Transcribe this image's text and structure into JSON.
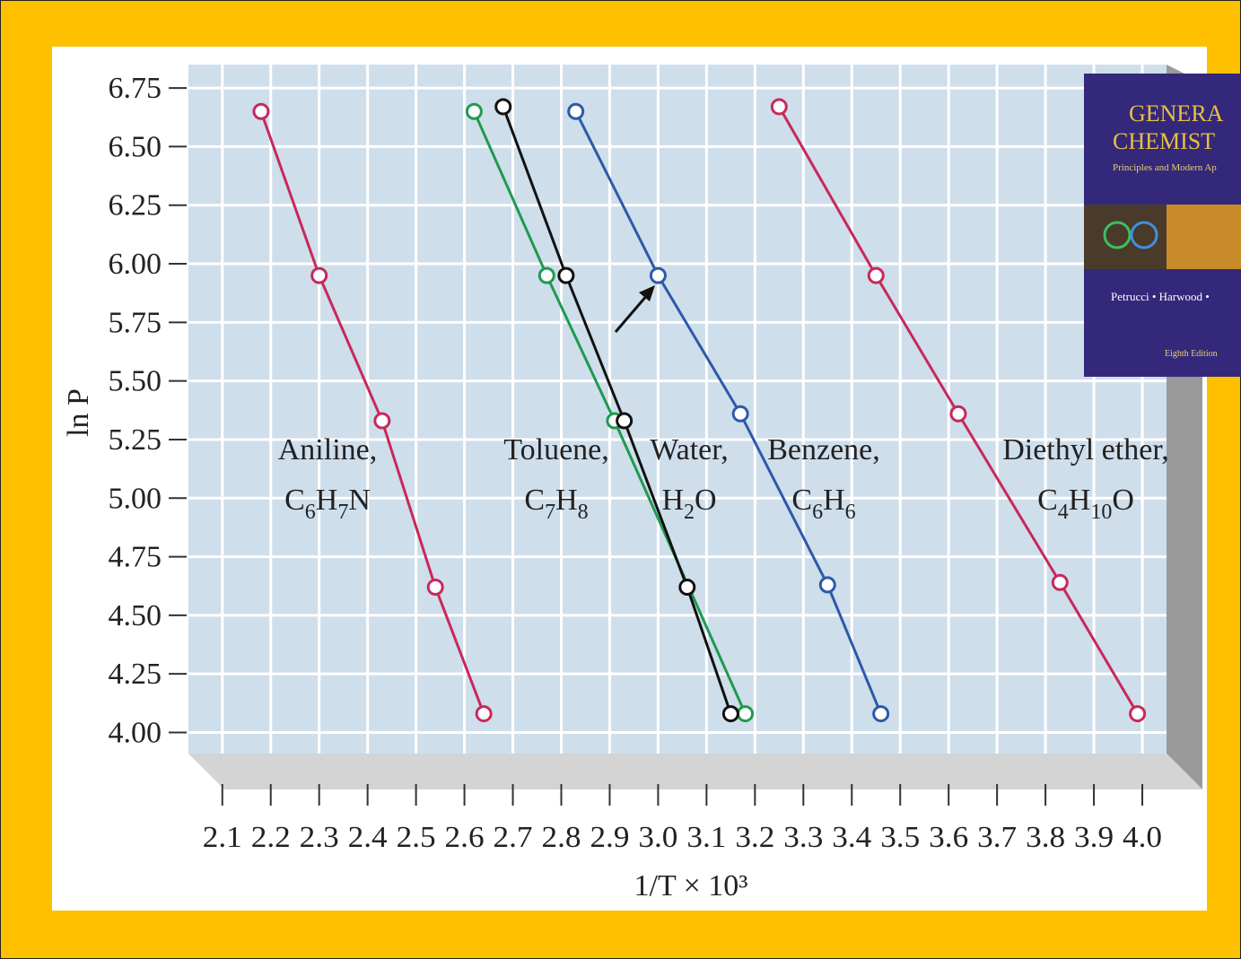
{
  "chart_data": {
    "type": "line",
    "y_label": "ln P",
    "x_label": "1/T × 10³",
    "xlim": [
      2.03,
      4.05
    ],
    "ylim": [
      3.91,
      6.85
    ],
    "xticks": [
      2.1,
      2.2,
      2.3,
      2.4,
      2.5,
      2.6,
      2.7,
      2.8,
      2.9,
      {
        "value": 3.0,
        "label": "3.0"
      },
      3.1,
      3.2,
      3.3,
      3.4,
      3.5,
      3.6,
      3.7,
      3.8,
      3.9,
      {
        "value": 4.0,
        "label": "4.0"
      }
    ],
    "yticks": [
      {
        "value": 4.0,
        "label": "4.00"
      },
      4.25,
      {
        "value": 4.5,
        "label": "4.50"
      },
      4.75,
      {
        "value": 5.0,
        "label": "5.00"
      },
      5.25,
      {
        "value": 5.5,
        "label": "5.50"
      },
      5.75,
      {
        "value": 6.0,
        "label": "6.00"
      },
      6.25,
      {
        "value": 6.5,
        "label": "6.50"
      },
      6.75
    ],
    "grid": true,
    "series": [
      {
        "name": "Aniline,",
        "formula": "C6H7N",
        "color": "#c8285a",
        "x": [
          2.18,
          2.3,
          2.43,
          2.54,
          2.64
        ],
        "values": [
          6.65,
          5.95,
          5.33,
          4.62,
          4.08
        ]
      },
      {
        "name": "Toluene,",
        "formula": "C7H8",
        "color": "#1f9a4e",
        "x": [
          2.62,
          2.77,
          2.91,
          3.18
        ],
        "values": [
          6.65,
          5.95,
          5.33,
          4.08
        ]
      },
      {
        "name": "Water,",
        "formula": "H2O",
        "color": "#111111",
        "x": [
          2.68,
          2.81,
          2.93,
          3.06,
          3.15
        ],
        "values": [
          6.67,
          5.95,
          5.33,
          4.62,
          4.08
        ]
      },
      {
        "name": "Benzene,",
        "formula": "C6H6",
        "color": "#2c5aa8",
        "x": [
          2.83,
          3.0,
          3.17,
          3.35,
          3.46
        ],
        "values": [
          6.65,
          5.95,
          5.36,
          4.63,
          4.08
        ]
      },
      {
        "name": "Diethyl ether,",
        "formula": "C4H10O",
        "color": "#c8285a",
        "x": [
          3.25,
          3.45,
          3.62,
          3.83,
          3.99
        ],
        "values": [
          6.67,
          5.95,
          5.36,
          4.64,
          4.08
        ]
      }
    ]
  },
  "book": {
    "title_1": "GENERA",
    "title_2": "CHEMIST",
    "subtitle": "Principles and Modern Ap",
    "authors": "Petrucci • Harwood •",
    "edition": "Eighth Edition"
  }
}
